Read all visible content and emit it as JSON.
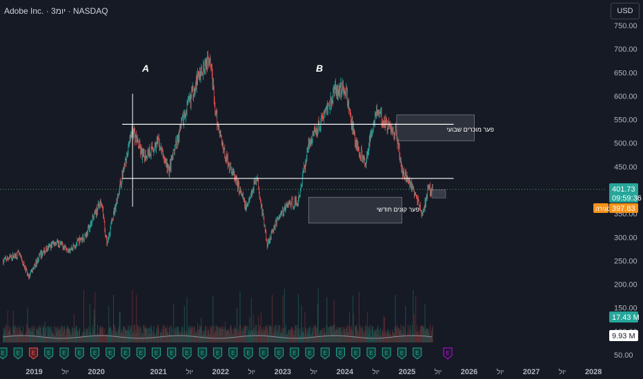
{
  "header": {
    "title": "Adobe Inc. · 3יומ · NASDAQ",
    "currency_button": "USD"
  },
  "colors": {
    "background": "#161a25",
    "up": "#26a69a",
    "down": "#ef5350",
    "price_tag": "#26a69a",
    "target_tag": "#f7931a",
    "line": "#ffffff",
    "dotted": "#4caf50"
  },
  "annotations": {
    "label_a": "A",
    "label_b": "B",
    "zone_sell": "פער מוכרים שבועי",
    "zone_buy": "פער קונים חודשי"
  },
  "tags": {
    "last_price": "401.73",
    "countdown": "09:59:36",
    "target_label": "סגירה",
    "target_price": "397.83",
    "volume_last": "17.43 M",
    "volume_avg": "9.93 M"
  },
  "chart_data": {
    "type": "candlestick",
    "title": "Adobe Inc. · 3יומ · NASDAQ",
    "y_ticks": [
      "750.00",
      "700.00",
      "650.00",
      "600.00",
      "550.00",
      "500.00",
      "450.00",
      "350.00",
      "300.00",
      "250.00",
      "200.00",
      "150.00",
      "100.00",
      "50.00"
    ],
    "x_ticks": [
      "2019",
      "יול",
      "2020",
      "2021",
      "יול",
      "2022",
      "יול",
      "2023",
      "יול",
      "2024",
      "יול",
      "2025",
      "יול",
      "2026",
      "יול",
      "2027",
      "יול",
      "2028"
    ],
    "ylim": [
      50,
      750
    ],
    "x_range": [
      "2018-07",
      "2028-03"
    ],
    "price_path": [
      [
        "2018-07",
        250
      ],
      [
        "2018-10",
        265
      ],
      [
        "2018-12",
        215
      ],
      [
        "2019-02",
        260
      ],
      [
        "2019-05",
        290
      ],
      [
        "2019-08",
        275
      ],
      [
        "2019-11",
        305
      ],
      [
        "2020-02",
        380
      ],
      [
        "2020-03",
        285
      ],
      [
        "2020-06",
        430
      ],
      [
        "2020-08",
        530
      ],
      [
        "2020-10",
        470
      ],
      [
        "2021-01",
        500
      ],
      [
        "2021-03",
        440
      ],
      [
        "2021-06",
        560
      ],
      [
        "2021-09",
        650
      ],
      [
        "2021-11",
        690
      ],
      [
        "2021-12",
        560
      ],
      [
        "2022-02",
        470
      ],
      [
        "2022-04",
        420
      ],
      [
        "2022-06",
        360
      ],
      [
        "2022-08",
        430
      ],
      [
        "2022-10",
        285
      ],
      [
        "2022-12",
        340
      ],
      [
        "2023-02",
        370
      ],
      [
        "2023-04",
        375
      ],
      [
        "2023-06",
        500
      ],
      [
        "2023-08",
        540
      ],
      [
        "2023-11",
        610
      ],
      [
        "2024-01",
        620
      ],
      [
        "2024-03",
        500
      ],
      [
        "2024-05",
        460
      ],
      [
        "2024-07",
        570
      ],
      [
        "2024-09",
        540
      ],
      [
        "2024-11",
        520
      ],
      [
        "2024-12",
        440
      ],
      [
        "2025-01",
        430
      ],
      [
        "2025-03",
        380
      ],
      [
        "2025-04",
        345
      ],
      [
        "2025-05",
        400
      ],
      [
        "2025-06",
        401.73
      ]
    ],
    "horizontal_lines": [
      {
        "y": 540,
        "from": "2020-06",
        "to": "2025-10"
      },
      {
        "y": 425,
        "from": "2020-06",
        "to": "2025-10"
      }
    ],
    "zones": [
      {
        "name": "פער מוכרים שבועי",
        "y_low": 505,
        "y_high": 560,
        "from": "2024-11",
        "to": "2026-02"
      },
      {
        "name": "פער קונים חודשי",
        "y_low": 330,
        "y_high": 385,
        "from": "2023-06",
        "to": "2024-12"
      }
    ],
    "vertical_line": {
      "x": "2020-08",
      "y_low": 365,
      "y_high": 605
    },
    "current_price": 401.73,
    "target_price": 397.83,
    "earnings_markers": 29,
    "legend": "none",
    "grid": false
  }
}
